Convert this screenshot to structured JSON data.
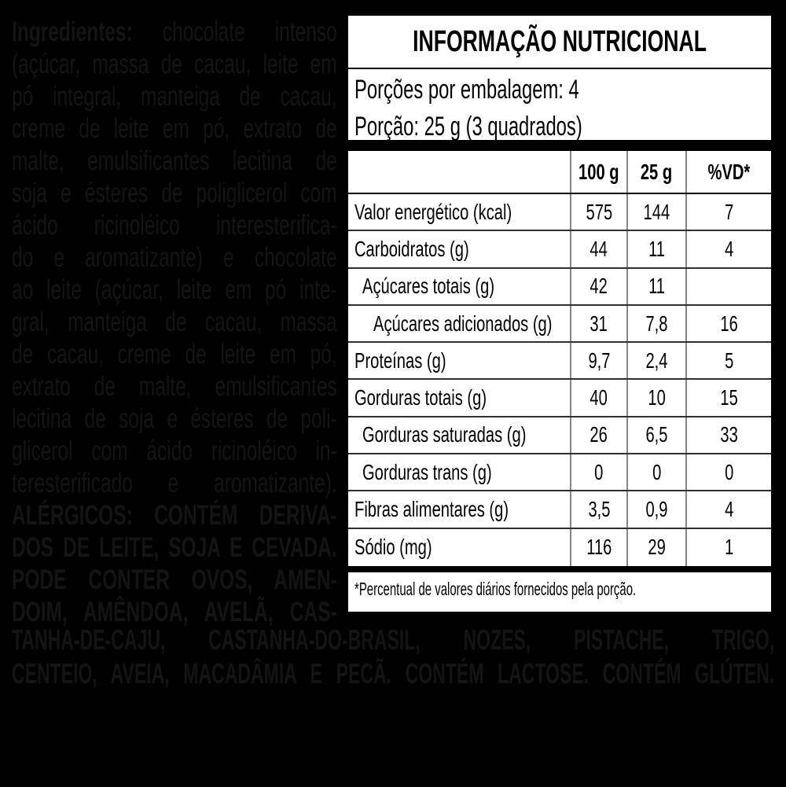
{
  "colors": {
    "background": "#000000",
    "panel_background": "#ffffff",
    "panel_ink": "#000000",
    "faint_ingredient_text": "#141414",
    "column_rule": "#85858d"
  },
  "ingredients": {
    "intro_label": "Ingredientes:",
    "intro_rest": " chocolate intenso",
    "lines": [
      "(açúcar, massa de cacau, leite em",
      "pó integral, manteiga de cacau,",
      "creme de leite em pó, extrato de",
      "malte, emulsificantes lecitina de",
      "soja e ésteres de poliglicerol com",
      "ácido ricinoléico interesterifica-",
      "do e aromatizante) e chocolate",
      "ao leite (açúcar, leite em pó inte-",
      "gral, manteiga de cacau, massa",
      "de cacau, creme de leite em pó,",
      "extrato de malte, emulsificantes",
      "lecitina de soja e ésteres de poli-",
      "glicerol com ácido ricinoléico in-",
      "teresterificado e aromatizante)."
    ],
    "allergen_lines": [
      "ALÉRGICOS: CONTÉM DERIVA-",
      "DOS DE LEITE, SOJA E CEVADA.",
      "PODE CONTER OVOS, AMEN-",
      "DOIM, AMÊNDOA, AVELÃ, CAS-"
    ],
    "bottom_lines": [
      "TANHA-DE-CAJU, CASTANHA-DO-BRASIL, NOZES, PISTACHE, TRIGO,",
      "CENTEIO, AVEIA, MACADÂMIA E PECÃ. CONTÉM LACTOSE. CONTÉM GLÚTEN."
    ]
  },
  "panel": {
    "title": "INFORMAÇÃO NUTRICIONAL",
    "servings_line": "Porções por embalagem: 4",
    "serving_line": "Porção: 25 g (3 quadrados)",
    "columns": [
      "100 g",
      "25 g",
      "%VD*"
    ],
    "rows": [
      {
        "name": "Valor energético (kcal)",
        "per100": "575",
        "per25": "144",
        "vd": "7"
      },
      {
        "name": "Carboidratos (g)",
        "per100": "44",
        "per25": "11",
        "vd": "4"
      },
      {
        "name": "Açúcares totais (g)",
        "per100": "42",
        "per25": "11",
        "vd": ""
      },
      {
        "name": "Açúcares adicionados (g)",
        "per100": "31",
        "per25": "7,8",
        "vd": "16"
      },
      {
        "name": "Proteínas (g)",
        "per100": "9,7",
        "per25": "2,4",
        "vd": "5"
      },
      {
        "name": "Gorduras totais (g)",
        "per100": "40",
        "per25": "10",
        "vd": "15"
      },
      {
        "name": "Gorduras saturadas (g)",
        "per100": "26",
        "per25": "6,5",
        "vd": "33"
      },
      {
        "name": "Gorduras trans (g)",
        "per100": "0",
        "per25": "0",
        "vd": "0"
      },
      {
        "name": "Fibras alimentares (g)",
        "per100": "3,5",
        "per25": "0,9",
        "vd": "4"
      },
      {
        "name": "Sódio (mg)",
        "per100": "116",
        "per25": "29",
        "vd": "1"
      }
    ],
    "footnote": "*Percentual de valores diários fornecidos pela porção."
  }
}
